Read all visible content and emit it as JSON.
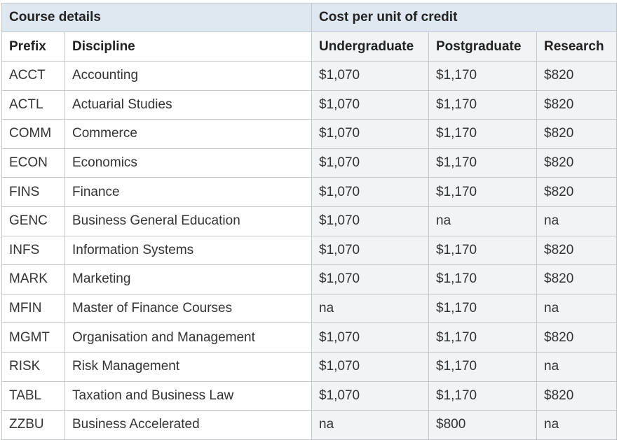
{
  "table": {
    "group_headers": {
      "course_details": "Course details",
      "cost_per_unit": "Cost per unit of credit"
    },
    "columns": {
      "prefix": "Prefix",
      "discipline": "Discipline",
      "undergraduate": "Undergraduate",
      "postgraduate": "Postgraduate",
      "research": "Research"
    },
    "rows": [
      {
        "prefix": "ACCT",
        "discipline": "Accounting",
        "undergraduate": "$1,070",
        "postgraduate": "$1,170",
        "research": "$820"
      },
      {
        "prefix": "ACTL",
        "discipline": "Actuarial Studies",
        "undergraduate": "$1,070",
        "postgraduate": "$1,170",
        "research": "$820"
      },
      {
        "prefix": "COMM",
        "discipline": "Commerce",
        "undergraduate": "$1,070",
        "postgraduate": "$1,170",
        "research": "$820"
      },
      {
        "prefix": "ECON",
        "discipline": "Economics",
        "undergraduate": "$1,070",
        "postgraduate": "$1,170",
        "research": "$820"
      },
      {
        "prefix": "FINS",
        "discipline": "Finance",
        "undergraduate": "$1,070",
        "postgraduate": "$1,170",
        "research": "$820"
      },
      {
        "prefix": "GENC",
        "discipline": "Business General Education",
        "undergraduate": "$1,070",
        "postgraduate": "na",
        "research": "na"
      },
      {
        "prefix": "INFS",
        "discipline": "Information Systems",
        "undergraduate": "$1,070",
        "postgraduate": "$1,170",
        "research": "$820"
      },
      {
        "prefix": "MARK",
        "discipline": "Marketing",
        "undergraduate": "$1,070",
        "postgraduate": "$1,170",
        "research": "$820"
      },
      {
        "prefix": "MFIN",
        "discipline": "Master of Finance Courses",
        "undergraduate": "na",
        "postgraduate": "$1,170",
        "research": "na"
      },
      {
        "prefix": "MGMT",
        "discipline": "Organisation and Management",
        "undergraduate": "$1,070",
        "postgraduate": "$1,170",
        "research": "$820"
      },
      {
        "prefix": "RISK",
        "discipline": "Risk Management",
        "undergraduate": "$1,070",
        "postgraduate": "$1,170",
        "research": "na"
      },
      {
        "prefix": "TABL",
        "discipline": "Taxation and Business Law",
        "undergraduate": "$1,070",
        "postgraduate": "$1,170",
        "research": "$820"
      },
      {
        "prefix": "ZZBU",
        "discipline": "Business Accelerated",
        "undergraduate": "na",
        "postgraduate": "$800",
        "research": "na"
      }
    ]
  }
}
